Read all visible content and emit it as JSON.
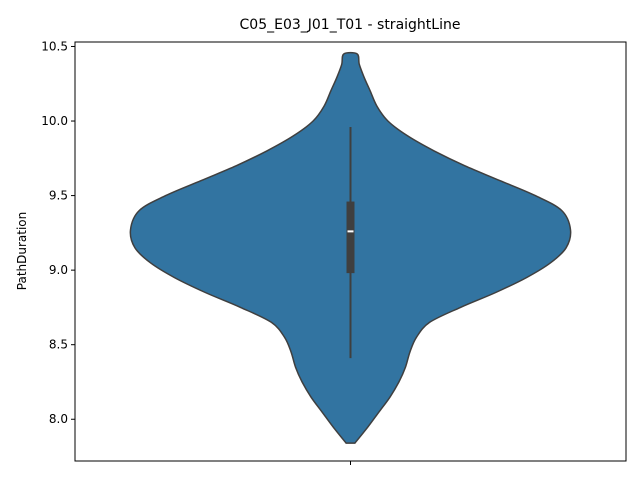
{
  "chart_data": {
    "type": "violin",
    "title": "C05_E03_J01_T01 - straightLine",
    "xlabel": "",
    "ylabel": "PathDuration",
    "ylim": [
      7.72,
      10.53
    ],
    "yticks": [
      "8.0",
      "8.5",
      "9.0",
      "9.5",
      "10.0",
      "10.5"
    ],
    "grid": false,
    "violin": {
      "color": "#3274a1",
      "edge_color": "#3f3f3f",
      "extent": [
        7.84,
        10.45
      ],
      "box": {
        "whisker_low": 8.41,
        "q1": 8.98,
        "median": 9.26,
        "q3": 9.46,
        "whisker_high": 9.96
      },
      "density_profile": [
        {
          "y": 7.84,
          "w": 0.02
        },
        {
          "y": 7.95,
          "w": 0.08
        },
        {
          "y": 8.05,
          "w": 0.13
        },
        {
          "y": 8.15,
          "w": 0.18
        },
        {
          "y": 8.25,
          "w": 0.22
        },
        {
          "y": 8.35,
          "w": 0.25
        },
        {
          "y": 8.45,
          "w": 0.27
        },
        {
          "y": 8.55,
          "w": 0.3
        },
        {
          "y": 8.65,
          "w": 0.36
        },
        {
          "y": 8.75,
          "w": 0.5
        },
        {
          "y": 8.85,
          "w": 0.66
        },
        {
          "y": 8.95,
          "w": 0.8
        },
        {
          "y": 9.05,
          "w": 0.91
        },
        {
          "y": 9.15,
          "w": 0.98
        },
        {
          "y": 9.27,
          "w": 1.0
        },
        {
          "y": 9.4,
          "w": 0.96
        },
        {
          "y": 9.5,
          "w": 0.84
        },
        {
          "y": 9.6,
          "w": 0.68
        },
        {
          "y": 9.7,
          "w": 0.52
        },
        {
          "y": 9.8,
          "w": 0.38
        },
        {
          "y": 9.9,
          "w": 0.26
        },
        {
          "y": 10.0,
          "w": 0.17
        },
        {
          "y": 10.1,
          "w": 0.12
        },
        {
          "y": 10.2,
          "w": 0.09
        },
        {
          "y": 10.3,
          "w": 0.06
        },
        {
          "y": 10.38,
          "w": 0.04
        },
        {
          "y": 10.45,
          "w": 0.03
        }
      ]
    }
  }
}
